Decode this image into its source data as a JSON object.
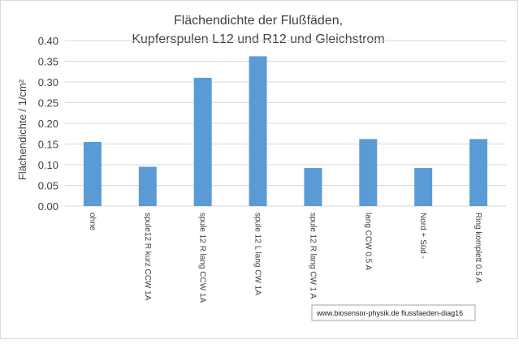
{
  "chart_data": {
    "type": "bar",
    "title_lines": [
      "Flächendichte der Flußfäden,",
      "Kupferspulen L12 und R12 und Gleichstrom"
    ],
    "ylabel": "Flächendichte  / 1/cm²",
    "xlabel": "",
    "categories": [
      "ohne",
      "spule12 R kurz CCW 1A",
      "spule 12 R lang CCW 1A",
      "spule 12 L lang CW  1A",
      "spule 12 R lang CW 1 A",
      "lang CCW 0.5 A",
      "Nord + Süd -",
      "Ring komplett 0.5 A"
    ],
    "values": [
      0.155,
      0.095,
      0.31,
      0.362,
      0.092,
      0.162,
      0.092,
      0.162
    ],
    "ylim": [
      0,
      0.4
    ],
    "yticks": [
      "0.00",
      "0.05",
      "0.10",
      "0.15",
      "0.20",
      "0.25",
      "0.30",
      "0.35",
      "0.40"
    ],
    "grid": true,
    "bar_color": "#5b9bd5",
    "grid_color": "#d9d9d9"
  },
  "footer_note": "www.biosensor-physik.de  flussfaeden-diag16"
}
